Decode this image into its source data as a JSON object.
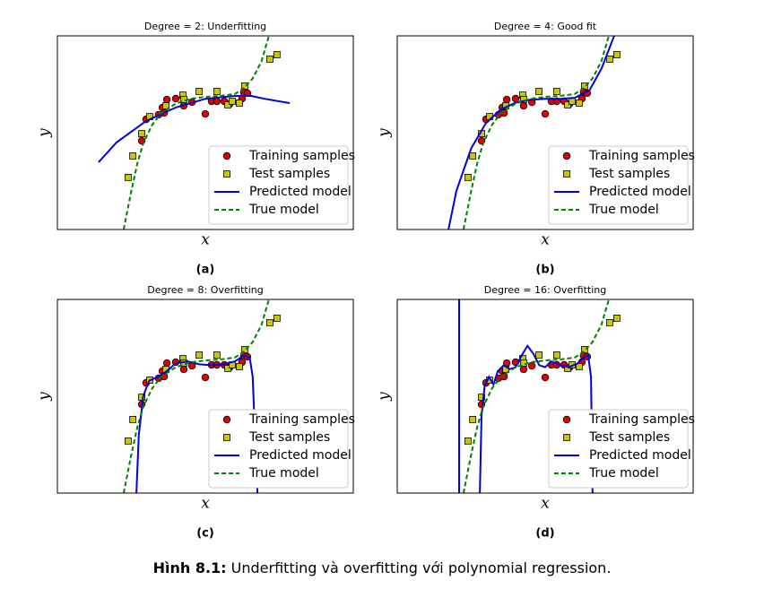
{
  "chart_data": [
    {
      "type": "scatter",
      "title": "Degree = 2: Underfitting",
      "xlabel": "x",
      "ylabel": "y",
      "caption": "(a)",
      "xlim": [
        0,
        1
      ],
      "ylim": [
        0,
        1
      ],
      "legend": "lower right",
      "series": [
        {
          "name": "Training samples",
          "color": "#e00000",
          "marker": "circle",
          "x": [
            0.3,
            0.285,
            0.342,
            0.355,
            0.37,
            0.361,
            0.4,
            0.427,
            0.455,
            0.5,
            0.521,
            0.539,
            0.564,
            0.582,
            0.624,
            0.63,
            0.642
          ],
          "values": [
            0.569,
            0.458,
            0.593,
            0.63,
            0.671,
            0.602,
            0.676,
            0.639,
            0.657,
            0.597,
            0.662,
            0.662,
            0.662,
            0.648,
            0.676,
            0.708,
            0.704
          ]
        },
        {
          "name": "Test samples",
          "color": "#c8c800",
          "marker": "square",
          "x": [
            0.239,
            0.255,
            0.285,
            0.312,
            0.367,
            0.424,
            0.427,
            0.479,
            0.539,
            0.576,
            0.591,
            0.615,
            0.633,
            0.718,
            0.742
          ],
          "values": [
            0.269,
            0.38,
            0.495,
            0.583,
            0.639,
            0.694,
            0.671,
            0.713,
            0.713,
            0.644,
            0.662,
            0.653,
            0.741,
            0.88,
            0.903
          ]
        },
        {
          "name": "Predicted model",
          "color": "#0000e0",
          "style": "solid",
          "x": [
            0.139,
            0.2,
            0.3,
            0.4,
            0.5,
            0.6,
            0.655,
            0.7,
            0.785
          ],
          "values": [
            0.347,
            0.45,
            0.56,
            0.63,
            0.675,
            0.69,
            0.69,
            0.675,
            0.653
          ]
        },
        {
          "name": "True model",
          "color": "#008000",
          "style": "dashed",
          "x": [
            0.224,
            0.25,
            0.27,
            0.29,
            0.32,
            0.35,
            0.4,
            0.45,
            0.5,
            0.55,
            0.6,
            0.63,
            0.66,
            0.69,
            0.715
          ],
          "values": [
            0,
            0.2,
            0.34,
            0.444,
            0.54,
            0.6,
            0.65,
            0.675,
            0.685,
            0.69,
            0.7,
            0.73,
            0.78,
            0.87,
            1
          ]
        }
      ]
    },
    {
      "type": "scatter",
      "title": "Degree = 4: Good fit",
      "xlabel": "x",
      "ylabel": "y",
      "caption": "(b)",
      "xlim": [
        0,
        1
      ],
      "ylim": [
        0,
        1
      ],
      "legend": "lower right",
      "series": [
        {
          "name": "Training samples",
          "color": "#e00000",
          "marker": "circle",
          "x": [
            0.3,
            0.285,
            0.342,
            0.355,
            0.37,
            0.361,
            0.4,
            0.427,
            0.455,
            0.5,
            0.521,
            0.539,
            0.564,
            0.582,
            0.624,
            0.63,
            0.642
          ],
          "values": [
            0.569,
            0.458,
            0.593,
            0.63,
            0.671,
            0.602,
            0.676,
            0.639,
            0.657,
            0.597,
            0.662,
            0.662,
            0.662,
            0.648,
            0.676,
            0.708,
            0.704
          ]
        },
        {
          "name": "Test samples",
          "color": "#c8c800",
          "marker": "square",
          "x": [
            0.239,
            0.255,
            0.285,
            0.312,
            0.367,
            0.424,
            0.427,
            0.479,
            0.539,
            0.576,
            0.591,
            0.615,
            0.633,
            0.718,
            0.742
          ],
          "values": [
            0.269,
            0.38,
            0.495,
            0.583,
            0.639,
            0.694,
            0.671,
            0.713,
            0.713,
            0.644,
            0.662,
            0.653,
            0.741,
            0.88,
            0.903
          ]
        },
        {
          "name": "Predicted model",
          "color": "#0000e0",
          "style": "solid",
          "x": [
            0.173,
            0.2,
            0.25,
            0.3,
            0.35,
            0.4,
            0.45,
            0.5,
            0.55,
            0.6,
            0.65,
            0.69,
            0.733
          ],
          "values": [
            0,
            0.2,
            0.42,
            0.55,
            0.62,
            0.655,
            0.67,
            0.675,
            0.675,
            0.68,
            0.72,
            0.83,
            1
          ]
        },
        {
          "name": "True model",
          "color": "#008000",
          "style": "dashed",
          "x": [
            0.224,
            0.25,
            0.27,
            0.29,
            0.32,
            0.35,
            0.4,
            0.45,
            0.5,
            0.55,
            0.6,
            0.63,
            0.66,
            0.69,
            0.715
          ],
          "values": [
            0,
            0.2,
            0.34,
            0.444,
            0.54,
            0.6,
            0.65,
            0.675,
            0.685,
            0.69,
            0.7,
            0.73,
            0.78,
            0.87,
            1
          ]
        }
      ]
    },
    {
      "type": "scatter",
      "title": "Degree = 8: Overfitting",
      "xlabel": "x",
      "ylabel": "y",
      "caption": "(c)",
      "xlim": [
        0,
        1
      ],
      "ylim": [
        0,
        1
      ],
      "legend": "lower right",
      "series": [
        {
          "name": "Training samples",
          "color": "#e00000",
          "marker": "circle",
          "x": [
            0.3,
            0.285,
            0.342,
            0.355,
            0.37,
            0.361,
            0.4,
            0.427,
            0.455,
            0.5,
            0.521,
            0.539,
            0.564,
            0.582,
            0.624,
            0.63,
            0.642
          ],
          "values": [
            0.569,
            0.458,
            0.593,
            0.63,
            0.671,
            0.602,
            0.676,
            0.639,
            0.657,
            0.597,
            0.662,
            0.662,
            0.662,
            0.648,
            0.676,
            0.708,
            0.704
          ]
        },
        {
          "name": "Test samples",
          "color": "#c8c800",
          "marker": "square",
          "x": [
            0.239,
            0.255,
            0.285,
            0.312,
            0.367,
            0.424,
            0.427,
            0.479,
            0.539,
            0.576,
            0.591,
            0.615,
            0.633,
            0.718,
            0.742
          ],
          "values": [
            0.269,
            0.38,
            0.495,
            0.583,
            0.639,
            0.694,
            0.671,
            0.713,
            0.713,
            0.644,
            0.662,
            0.653,
            0.741,
            0.88,
            0.903
          ]
        },
        {
          "name": "Predicted model",
          "color": "#0000e0",
          "style": "solid",
          "x": [
            0.267,
            0.275,
            0.29,
            0.31,
            0.34,
            0.37,
            0.4,
            0.44,
            0.48,
            0.52,
            0.56,
            0.6,
            0.63,
            0.65,
            0.66,
            0.668,
            0.676
          ],
          "values": [
            0,
            0.3,
            0.5,
            0.58,
            0.6,
            0.63,
            0.67,
            0.68,
            0.665,
            0.66,
            0.665,
            0.68,
            0.71,
            0.7,
            0.6,
            0.3,
            0
          ]
        },
        {
          "name": "True model",
          "color": "#008000",
          "style": "dashed",
          "x": [
            0.224,
            0.25,
            0.27,
            0.29,
            0.32,
            0.35,
            0.4,
            0.45,
            0.5,
            0.55,
            0.6,
            0.63,
            0.66,
            0.69,
            0.715
          ],
          "values": [
            0,
            0.2,
            0.34,
            0.444,
            0.54,
            0.6,
            0.65,
            0.675,
            0.685,
            0.69,
            0.7,
            0.73,
            0.78,
            0.87,
            1
          ]
        }
      ]
    },
    {
      "type": "scatter",
      "title": "Degree = 16: Overfitting",
      "xlabel": "x",
      "ylabel": "y",
      "caption": "(d)",
      "xlim": [
        0,
        1
      ],
      "ylim": [
        0,
        1
      ],
      "legend": "lower right",
      "series": [
        {
          "name": "Training samples",
          "color": "#e00000",
          "marker": "circle",
          "x": [
            0.3,
            0.285,
            0.342,
            0.355,
            0.37,
            0.361,
            0.4,
            0.427,
            0.455,
            0.5,
            0.521,
            0.539,
            0.564,
            0.582,
            0.624,
            0.63,
            0.642
          ],
          "values": [
            0.569,
            0.458,
            0.593,
            0.63,
            0.671,
            0.602,
            0.676,
            0.639,
            0.657,
            0.597,
            0.662,
            0.662,
            0.662,
            0.648,
            0.676,
            0.708,
            0.704
          ]
        },
        {
          "name": "Test samples",
          "color": "#c8c800",
          "marker": "square",
          "x": [
            0.239,
            0.255,
            0.285,
            0.312,
            0.367,
            0.424,
            0.427,
            0.479,
            0.539,
            0.576,
            0.591,
            0.615,
            0.633,
            0.718,
            0.742
          ],
          "values": [
            0.269,
            0.38,
            0.495,
            0.583,
            0.639,
            0.694,
            0.671,
            0.713,
            0.713,
            0.644,
            0.662,
            0.653,
            0.741,
            0.88,
            0.903
          ]
        },
        {
          "name": "Predicted model",
          "color": "#0000e0",
          "style": "solid",
          "x": [
            0.209,
            0.209,
            null,
            0.279,
            0.285,
            0.295,
            0.31,
            0.325,
            0.34,
            0.36,
            0.38,
            0.4,
            0.42,
            0.44,
            0.46,
            0.48,
            0.5,
            0.52,
            0.55,
            0.58,
            0.61,
            0.63,
            0.645,
            0.655,
            0.66
          ],
          "values": [
            0,
            1,
            null,
            0,
            0.4,
            0.55,
            0.6,
            0.56,
            0.63,
            0.66,
            0.64,
            0.65,
            0.71,
            0.76,
            0.72,
            0.66,
            0.65,
            0.68,
            0.66,
            0.65,
            0.67,
            0.7,
            0.71,
            0.6,
            0
          ]
        },
        {
          "name": "True model",
          "color": "#008000",
          "style": "dashed",
          "x": [
            0.224,
            0.25,
            0.27,
            0.29,
            0.32,
            0.35,
            0.4,
            0.45,
            0.5,
            0.55,
            0.6,
            0.63,
            0.66,
            0.69,
            0.715
          ],
          "values": [
            0,
            0.2,
            0.34,
            0.444,
            0.54,
            0.6,
            0.65,
            0.675,
            0.685,
            0.69,
            0.7,
            0.73,
            0.78,
            0.87,
            1
          ]
        }
      ]
    }
  ],
  "figure_caption": {
    "label": "Hình 8.1:",
    "text": "Underfitting và overfitting với polynomial regression."
  }
}
